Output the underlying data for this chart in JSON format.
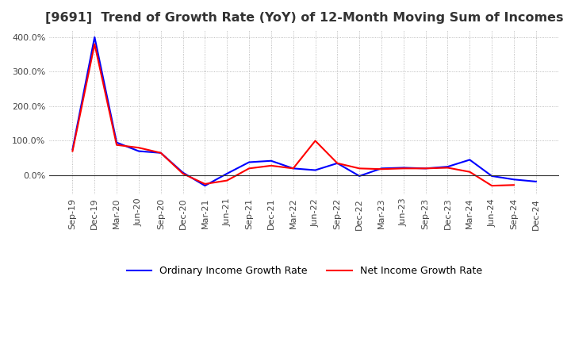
{
  "title": "[9691]  Trend of Growth Rate (YoY) of 12-Month Moving Sum of Incomes",
  "title_fontsize": 11.5,
  "background_color": "#ffffff",
  "grid_color": "#aaaaaa",
  "x_labels": [
    "Sep-19",
    "Dec-19",
    "Mar-20",
    "Jun-20",
    "Sep-20",
    "Dec-20",
    "Mar-21",
    "Jun-21",
    "Sep-21",
    "Dec-21",
    "Mar-22",
    "Jun-22",
    "Sep-22",
    "Dec-22",
    "Mar-23",
    "Jun-23",
    "Sep-23",
    "Dec-23",
    "Mar-24",
    "Jun-24",
    "Sep-24",
    "Dec-24"
  ],
  "ordinary_income_growth": [
    0.75,
    4.0,
    0.95,
    0.7,
    0.65,
    0.08,
    -0.3,
    0.05,
    0.38,
    0.42,
    0.2,
    0.15,
    0.35,
    -0.02,
    0.2,
    0.22,
    0.2,
    0.25,
    0.45,
    -0.02,
    -0.12,
    -0.18
  ],
  "net_income_growth": [
    0.7,
    3.8,
    0.88,
    0.8,
    0.65,
    0.05,
    -0.25,
    -0.15,
    0.2,
    0.28,
    0.2,
    1.0,
    0.35,
    0.2,
    0.18,
    0.2,
    0.2,
    0.22,
    0.1,
    -0.3,
    -0.28,
    null
  ],
  "ordinary_color": "#0000ff",
  "net_color": "#ff0000",
  "ylim_min": -0.55,
  "ylim_max": 4.2,
  "yticks": [
    0.0,
    1.0,
    2.0,
    3.0,
    4.0
  ],
  "legend_ordinary": "Ordinary Income Growth Rate",
  "legend_net": "Net Income Growth Rate"
}
